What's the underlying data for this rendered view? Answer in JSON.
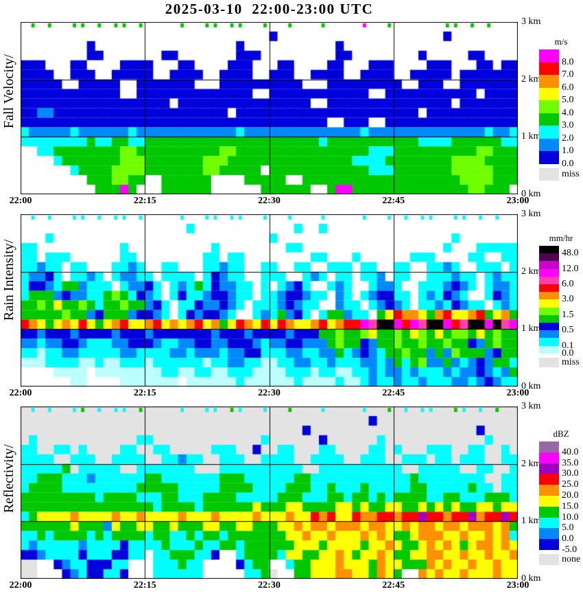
{
  "title": "2025-03-10  22:00-23:00 UTC",
  "chart_data": [
    {
      "type": "heatmap",
      "label": "Fall Velocity/",
      "x_ticks": [
        "22:00",
        "22:15",
        "22:30",
        "22:45",
        "23:00"
      ],
      "y_ticks": [
        "3 km",
        "2 km",
        "1 km",
        "0 km"
      ],
      "time_range_utc": [
        "22:00",
        "23:00"
      ],
      "height_range_km": [
        0,
        3
      ],
      "grid": {
        "h_lines_km": [
          1,
          2
        ],
        "v_lines": [
          "22:15",
          "22:30",
          "22:45"
        ]
      },
      "legend": {
        "unit": "m/s",
        "entries": [
          {
            "color": "#FF00FF",
            "label": "8.0"
          },
          {
            "color": "#FF0000",
            "label": "7.0"
          },
          {
            "color": "#FF9000",
            "label": "6.0"
          },
          {
            "color": "#FFFF00",
            "label": "5.0"
          },
          {
            "color": "#70FF00",
            "label": "4.0"
          },
          {
            "color": "#00C800",
            "label": "3.0"
          },
          {
            "color": "#00FFFF",
            "label": "2.0"
          },
          {
            "color": "#0088FF",
            "label": "1.0"
          },
          {
            "color": "#0000DD",
            "label": "0.0"
          }
        ],
        "extra": {
          "color": "#E3E3E3",
          "label": "miss"
        }
      },
      "field": {
        "note": "approximate values read off the plot; 60 columns x 18 rows (1 min x 0.167 km), row 0 = 3 km top, row 17 = ground",
        "palette": {
          ".": "#FFFFFF",
          "b": "#0000DD",
          "d": "#0088FF",
          "c": "#00FFFF",
          "g": "#00C800",
          "h": "#70FF00",
          "y": "#FFFF00",
          "m": "#FF00FF"
        },
        "rows": [
          ".g.g..gg.g.gg.g....g..gg.gg..g..g...g....m..g......gg.g.g..",
          "..............................b....................b.......",
          "........b.................b...........b....................",
          "........bb.......bb.......bbb.........bb........b.....bb...",
          "bbb...bb....bbbb...bb....bbb...bb....bb...bbb....bbb...bb.b",
          "bbbb..bbb..bbbbb..bbbb..bbbb..bbb..bbbb..bbbb..bbbbb.bbbbb",
          "bbbbb..bbbbb..bbbbbbb...bbbbbbbbbb...bbbbbbbbb..bbb..bbbbbb",
          "bbbbbbbbbbbb..bbbbbbbbbbbbbb..bbbbbbbbbbbb..bbbbbbbbbbb.bbb",
          "bbbbbbbbbbbbbbbbbb.bbbbbbbbbbbbbbbb..bbbbbbbbbbbbbbb.bbbbbb",
          "bbddbbbbbbbbbbbbbbbbbbbbb.bbbbbbbbbbbbbbbbbbbbbb.bbbbbbbbbb",
          "bbbbbbbbbbbbbbbbbbbbbbbbbbbbbbbbbbbbb..bbb..bbbbbbbbbbbbbbb",
          "cdddddcddddddcddddddddddddcddddddddddddddcddddddddddddddcdd",
          "ccccccccgccggccgggggggggggggggggggggcgggggggggggccccggggggcc",
          "..ccgggggggghhgggggggggghhggggggggggggggggcccgggggggggghhggg",
          "....cggggggghhhggggggghhhgggggggggggggggccccgggggggghhhhgggg",
          "......cgggghhhhggggggghhggggg.ggggggggggggcccggggggghhhhhggg",
          "........ggghhgg..gggggg....ggggg..ggggggggggggggggggghhhhggg",
          ".........gggmg...gggggg......gggggg..gmmgggggggggggggghhggg.g"
        ]
      }
    },
    {
      "type": "heatmap",
      "label": "Rain Intensity/",
      "x_ticks": [
        "22:00",
        "22:15",
        "22:30",
        "22:45",
        "23:00"
      ],
      "y_ticks": [
        "3 km",
        "2 km",
        "1 km",
        "0 km"
      ],
      "time_range_utc": [
        "22:00",
        "23:00"
      ],
      "height_range_km": [
        0,
        3
      ],
      "grid": {
        "h_lines_km": [
          1,
          2
        ],
        "v_lines": [
          "22:15",
          "22:30",
          "22:45"
        ]
      },
      "legend": {
        "unit": "mm/hr",
        "entries": [
          {
            "color": "#000000",
            "label": "48.0"
          },
          {
            "color": "#500050",
            "label": ""
          },
          {
            "color": "#CC00CC",
            "label": "12.0"
          },
          {
            "color": "#FF00FF",
            "label": ""
          },
          {
            "color": "#FF40B0",
            "label": "6.0"
          },
          {
            "color": "#FF0000",
            "label": ""
          },
          {
            "color": "#FF9000",
            "label": "3.0"
          },
          {
            "color": "#FFFF00",
            "label": ""
          },
          {
            "color": "#70FF00",
            "label": "1.5"
          },
          {
            "color": "#00C800",
            "label": ""
          },
          {
            "color": "#0000DD",
            "label": "0.5"
          },
          {
            "color": "#0088FF",
            "label": ""
          },
          {
            "color": "#00FFFF",
            "label": "0.1"
          },
          {
            "color": "#BBFFFF",
            "label": "0.0"
          }
        ],
        "extra": {
          "color": "#E3E3E3",
          "label": "miss"
        }
      },
      "field": {
        "note": "approximate values read off the plot; bright band near 1.1 km, heaviest rain (black/magenta, >12 mm/hr) after 22:44",
        "palette": {
          ".": "#FFFFFF",
          "p": "#BBFFFF",
          "c": "#00FFFF",
          "d": "#0088FF",
          "b": "#0000DD",
          "g": "#00C800",
          "h": "#70FF00",
          "y": "#FFFF00",
          "o": "#FF9000",
          "r": "#FF0000",
          "k": "#FF40B0",
          "m": "#FF00FF",
          "u": "#CC00CC",
          "x": "#000000"
        },
        "rows": [
          ".c.c..cc.c.cc.c....c..cc.cc..c..c...c....c..c.c.cc..cc.c.c..",
          "....................c............c..c....................",
          "...c..........................c.....................c.....",
          "cc..........c..........c........cc.................c...",
          "cc.ccc......cc........cc.cc........cc...c......ccc....cc..",
          "ccdcc.cc...ccdc..cc...ccdcc..cc..cc..ccc.cc..cc..ccdc..ccc.c",
          "cddbc.ccdc.cddcc.cccc.cbdcc..ccc..cdc.cc.ccd.cc..cccdcc.cdcc",
          "cbbdcggdccc.cddbc.cdcgcbddcc.c.cdbc..cdc..cddc..cccdbdc.cddc",
          "cgggdbddccghgcbdc.cbccdbbdcc.ccdbbdcc.dc.cdbbcc.cdcbdc..cbdc",
          "gghgygghgcgghggdbc.ccbddbdc.cccdbdcc..dcc.cdbdc.ccdcbdcc.cdc",
          "ggggghggdbgggdbbdc.cbdbbdc..cdcgdbc.cggdcc.gyrooygoryyorgyog",
          "roygyoyrygyoryyoryoyoryogyroyryroyyoryorrmkxxmrmkxxmrkxxmxkm",
          "bbdbbbdbbbbdbbbdbbbbbbbdbbbdbbbbdbbbgghgghygghgyhgyghhgyghgg",
          "ddcddbbdcccddbbbdccddbbddbbbdcddbbdddghggbdgghgghgghggbdghgg",
          "ccpccddcccccddccccddcdddcddbbcccddccddgcdbdcgghggdgdhgggdbgg",
          "pppccccppcppcccpccccccpccddccppccddccdcccddcdgcghddgdcdbdggc",
          "....pppp.ppppppppccppccppcccppppcccpccppccdcddcdcccdcddbdcdg",
          "......pp....ppppppp.ppppppcppppppcppppcppcdccdccdcccddcdbdcc"
        ]
      }
    },
    {
      "type": "heatmap",
      "label": "Reflectivity/",
      "x_ticks": [
        "22:00",
        "22:15",
        "22:30",
        "22:45",
        "23:00"
      ],
      "y_ticks": [
        "3 km",
        "2 km",
        "1 km",
        "0 km"
      ],
      "time_range_utc": [
        "22:00",
        "23:00"
      ],
      "height_range_km": [
        0,
        3
      ],
      "grid": {
        "h_lines_km": [
          1,
          2
        ],
        "v_lines": [
          "22:15",
          "22:30",
          "22:45"
        ]
      },
      "legend": {
        "unit": "dBZ",
        "entries": [
          {
            "color": "#9966A6",
            "label": "40.0"
          },
          {
            "color": "#FF00FF",
            "label": "35.0"
          },
          {
            "color": "#A000C0",
            "label": "30.0"
          },
          {
            "color": "#FF0000",
            "label": "25.0"
          },
          {
            "color": "#FF9000",
            "label": "20.0"
          },
          {
            "color": "#FFFF00",
            "label": "15.0"
          },
          {
            "color": "#00C800",
            "label": "10.0"
          },
          {
            "color": "#00FFFF",
            "label": "5.0"
          },
          {
            "color": "#0088FF",
            "label": "0.0"
          },
          {
            "color": "#0000DD",
            "label": "-5.0"
          }
        ],
        "extra": {
          "color": "#E3E3E3",
          "label": "none"
        }
      },
      "field": {
        "note": "approximate values read off the plot; gray = no data, yellow/red bright band near 1.1 km, 25-30 dBZ with purple specks after 22:45",
        "palette": {
          "-": "#E3E3E3",
          ".": "#FFFFFF",
          "b": "#0000DD",
          "d": "#0088FF",
          "c": "#00FFFF",
          "g": "#00C800",
          "y": "#FFFF00",
          "o": "#FF9000",
          "r": "#FF0000",
          "u": "#A000C0",
          "m": "#FF00FF"
        },
        "rows": [
          "-c-c--cg-c-cc-g----c--cc-gc--c--g---c----c--g-c-cc--gc-c-g--",
          "------------------------------------------b-----------------",
          "----------------------------------b--------------------b--",
          "-c------------cc-------------c------b------c------------c---",
          "cc--cc-c----cc--cc-----ccc--b--cc---cc----cc-c---ccc--cc--c-",
          "cccc--ccc--cccc--ccdcc--ccc--cccc--cccc--ccc--ccc-cc-ccc--cc",
          "cccccg-ccccc--ccccccc---cccccccccc--cccccccccc--ccccc--cc--c-",
          "ccgggcccdccccccggcccccccgggccccccggccccccccccccgcccccccc--cc-",
          "cggggcccccccccgggggcccccggggccccgggccgcccgcccccggcccccgcc-cc",
          "gggggggggcggggcccggcccggggcccccgggcccggcggcgcggggccggcccgggc",
          "ggggggggggggggggcggggcggggggygggyyggggyygyggyyggygygyggyygyy",
          "cgyyyyoyyyyoyyoyyyyoyyyoyyyyoyyyoyyroryyroorrorrurrorruorrur",
          "ggggggygggdyggyyggygggyyggyygggyyoyooyoooyooyyoyooyooyoooyo",
          "ccgcggggcgcggggcggccgcggcgggggggyyoyyoyyyoyoyggyoooyyoyyoyo",
          "cdcccccdccccbccccgcccgccggcggggggyyygyyyygyyoyggyoyoygyooyoy",
          "bbdccccbcccbbcc.ccgggccb..cggggcyyggyyoygyyoyggyyooyyoyyoyyo",
          "--..bdccbbbcc...cccgcc....bcgg..cggyyyoyyygoyygggoyoyyoyyoyy",
          "--...bdcbbccb...cccccc.....ccg-..ggyyyooyygoyg..oyoyyoyyyoyy"
        ]
      }
    }
  ]
}
